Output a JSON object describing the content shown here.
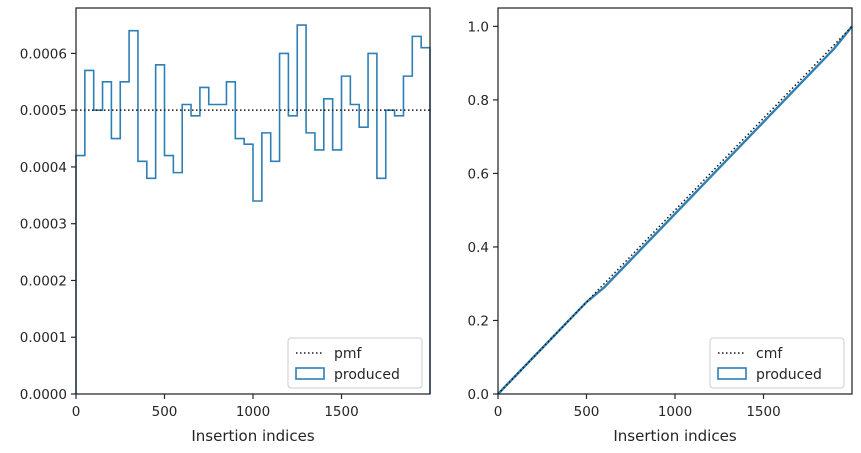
{
  "chart_data": [
    {
      "type": "line",
      "subtype": "histogram-step",
      "xlabel": "Insertion indices",
      "ylabel": "",
      "xlim": [
        0,
        2000
      ],
      "ylim": [
        0,
        0.00068
      ],
      "xticks": [
        0,
        500,
        1000,
        1500
      ],
      "xtick_labels": [
        "0",
        "500",
        "1000",
        "1500"
      ],
      "yticks": [
        0,
        0.0001,
        0.0002,
        0.0003,
        0.0004,
        0.0005,
        0.0006
      ],
      "ytick_labels": [
        "0.0000",
        "0.0001",
        "0.0002",
        "0.0003",
        "0.0004",
        "0.0005",
        "0.0006"
      ],
      "grid": false,
      "legend_position": "bottom-right",
      "bin_edges": [
        0,
        50,
        100,
        150,
        200,
        250,
        300,
        350,
        400,
        450,
        500,
        550,
        600,
        650,
        700,
        750,
        800,
        850,
        900,
        950,
        1000,
        1050,
        1100,
        1150,
        1200,
        1250,
        1300,
        1350,
        1400,
        1450,
        1500,
        1550,
        1600,
        1650,
        1700,
        1750,
        1800,
        1850,
        1900,
        1950,
        2000
      ],
      "series": [
        {
          "name": "produced",
          "kind": "step",
          "color": "#2e7fb5",
          "values": [
            0.00042,
            0.00057,
            0.0005,
            0.00055,
            0.00045,
            0.00055,
            0.00064,
            0.00041,
            0.00038,
            0.00058,
            0.00042,
            0.00039,
            0.00051,
            0.00049,
            0.00054,
            0.00051,
            0.00051,
            0.00055,
            0.00045,
            0.00044,
            0.00034,
            0.00046,
            0.00041,
            0.0006,
            0.00049,
            0.00065,
            0.00046,
            0.00043,
            0.00052,
            0.00043,
            0.00056,
            0.00051,
            0.00047,
            0.0006,
            0.00038,
            0.0005,
            0.00049,
            0.00056,
            0.00063,
            0.00061
          ]
        },
        {
          "name": "pmf",
          "kind": "hline",
          "color": "#1a1a1a",
          "value": 0.0005
        }
      ]
    },
    {
      "type": "line",
      "xlabel": "Insertion indices",
      "ylabel": "",
      "xlim": [
        0,
        2000
      ],
      "ylim": [
        0,
        1.05
      ],
      "xticks": [
        0,
        500,
        1000,
        1500
      ],
      "xtick_labels": [
        "0",
        "500",
        "1000",
        "1500"
      ],
      "yticks": [
        0,
        0.2,
        0.4,
        0.6,
        0.8,
        1.0
      ],
      "ytick_labels": [
        "0.0",
        "0.2",
        "0.4",
        "0.6",
        "0.8",
        "1.0"
      ],
      "grid": false,
      "legend_position": "bottom-right",
      "series": [
        {
          "name": "produced",
          "kind": "line",
          "color": "#2e7fb5",
          "x": [
            0,
            100,
            200,
            300,
            400,
            500,
            600,
            700,
            800,
            900,
            1000,
            1100,
            1200,
            1300,
            1400,
            1500,
            1600,
            1700,
            1800,
            1900,
            2000
          ],
          "values": [
            0,
            0.05,
            0.1,
            0.15,
            0.2,
            0.25,
            0.29,
            0.34,
            0.39,
            0.44,
            0.49,
            0.54,
            0.59,
            0.64,
            0.69,
            0.74,
            0.79,
            0.84,
            0.89,
            0.94,
            1.0
          ]
        },
        {
          "name": "cmf",
          "kind": "line-dotted",
          "color": "#1a1a1a",
          "x": [
            0,
            2000
          ],
          "values": [
            0,
            1.0
          ]
        }
      ]
    }
  ]
}
